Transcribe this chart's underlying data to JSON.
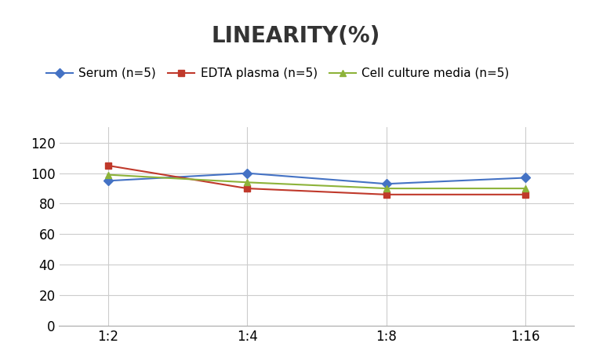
{
  "title": "LINEARITY(%)",
  "x_labels": [
    "1:2",
    "1:4",
    "1:8",
    "1:16"
  ],
  "x_positions": [
    0,
    1,
    2,
    3
  ],
  "series": [
    {
      "label": "Serum (n=5)",
      "values": [
        95,
        100,
        93,
        97
      ],
      "color": "#4472C4",
      "marker": "D",
      "markersize": 6
    },
    {
      "label": "EDTA plasma (n=5)",
      "values": [
        105,
        90,
        86,
        86
      ],
      "color": "#C0392B",
      "marker": "s",
      "markersize": 6
    },
    {
      "label": "Cell culture media (n=5)",
      "values": [
        99,
        94,
        90,
        90
      ],
      "color": "#8DB33A",
      "marker": "^",
      "markersize": 6
    }
  ],
  "ylim": [
    0,
    130
  ],
  "yticks": [
    0,
    20,
    40,
    60,
    80,
    100,
    120
  ],
  "background_color": "#ffffff",
  "title_fontsize": 20,
  "legend_fontsize": 11,
  "tick_fontsize": 12,
  "title_color": "#333333"
}
